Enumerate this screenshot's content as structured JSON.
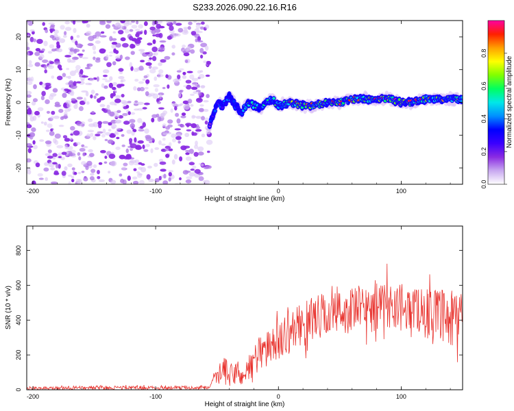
{
  "title": "S233.2026.090.22.16.R16",
  "chart_data": [
    {
      "type": "heatmap",
      "xlabel": "Height of straight line (km)",
      "ylabel": "Frequency (Hz)",
      "xlim": [
        -205,
        150
      ],
      "ylim": [
        -25,
        25
      ],
      "xticks": [
        -200,
        -100,
        0,
        100
      ],
      "yticks": [
        -20,
        -10,
        0,
        10,
        20
      ],
      "colorbar": {
        "label": "Normalized spectral amplitude",
        "range": [
          0,
          1
        ],
        "ticks": [
          0.0,
          0.2,
          0.4,
          0.6,
          0.8
        ],
        "colormap": [
          "#ffffff",
          "#c8a8f0",
          "#8a2be2",
          "#3a00ff",
          "#0000ff",
          "#0090ff",
          "#00e8e8",
          "#00ff60",
          "#80ff00",
          "#ffff00",
          "#ffa000",
          "#ff2000",
          "#ff00a0"
        ]
      },
      "noise_region_x": [
        -205,
        -56
      ],
      "signal_trace": {
        "x": [
          -56,
          -54,
          -50,
          -45,
          -40,
          -35,
          -30,
          -25,
          -20,
          -15,
          -10,
          -5,
          0,
          10,
          20,
          30,
          40,
          50,
          60,
          70,
          80,
          90,
          100,
          110,
          120,
          130,
          140,
          150
        ],
        "freq": [
          -7,
          -5,
          0,
          -1,
          2,
          -1,
          -3,
          0,
          -1,
          -2,
          0,
          1,
          -1,
          0,
          -1,
          -1,
          0,
          0,
          1,
          1,
          1,
          1,
          0,
          0,
          1,
          1,
          1,
          1
        ],
        "amplitude": [
          0.25,
          0.3,
          0.25,
          0.35,
          0.3,
          0.4,
          0.45,
          0.55,
          0.55,
          0.5,
          0.45,
          0.5,
          0.55,
          0.85,
          0.75,
          0.8,
          0.8,
          0.85,
          0.8,
          0.75,
          0.85,
          0.9,
          0.9,
          0.85,
          0.8,
          0.75,
          0.7,
          0.7
        ]
      }
    },
    {
      "type": "line",
      "xlabel": "Height of straight line (km)",
      "ylabel": "SNR (10 * v/v)",
      "xlim": [
        -205,
        150
      ],
      "ylim": [
        0,
        940
      ],
      "xticks": [
        -200,
        -100,
        0,
        100
      ],
      "yticks": [
        0,
        200,
        400,
        600,
        800
      ],
      "series": [
        {
          "name": "SNR",
          "color": "#e8302b",
          "x": [
            -205,
            -150,
            -100,
            -60,
            -56,
            -45,
            -40,
            -35,
            -30,
            -25,
            -20,
            -15,
            -10,
            -5,
            0,
            10,
            20,
            30,
            40,
            50,
            60,
            70,
            80,
            90,
            100,
            110,
            120,
            130,
            140,
            150
          ],
          "mean": [
            10,
            12,
            12,
            12,
            12,
            120,
            80,
            100,
            70,
            120,
            170,
            220,
            230,
            250,
            290,
            340,
            380,
            420,
            430,
            440,
            460,
            470,
            480,
            490,
            480,
            470,
            450,
            430,
            390,
            400
          ],
          "spread": [
            14,
            18,
            18,
            16,
            16,
            150,
            120,
            130,
            90,
            140,
            170,
            200,
            180,
            190,
            210,
            210,
            220,
            230,
            240,
            240,
            240,
            240,
            240,
            240,
            240,
            240,
            250,
            260,
            330,
            320
          ]
        }
      ]
    }
  ]
}
